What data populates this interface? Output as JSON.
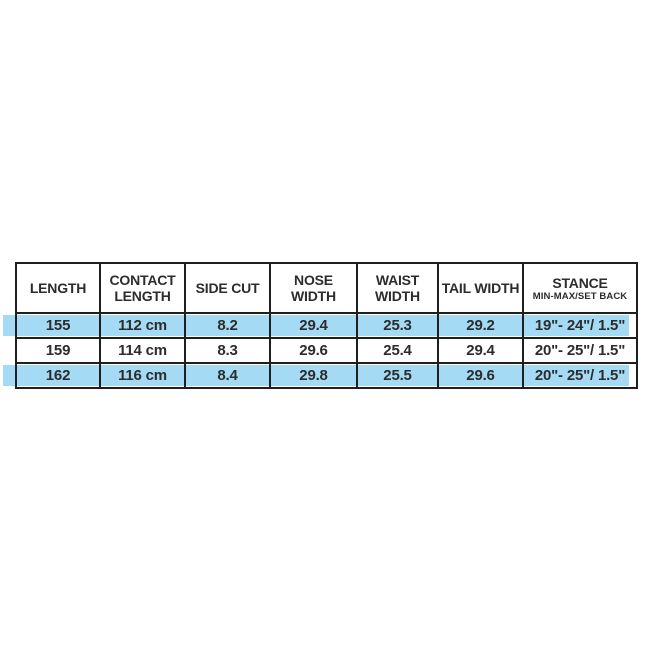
{
  "chart_data": {
    "type": "table",
    "columns": [
      {
        "label": "LENGTH",
        "sublabel": null
      },
      {
        "label": "CONTACT LENGTH",
        "sublabel": null
      },
      {
        "label": "SIDE CUT",
        "sublabel": null
      },
      {
        "label": "NOSE WIDTH",
        "sublabel": null
      },
      {
        "label": "WAIST WIDTH",
        "sublabel": null
      },
      {
        "label": "TAIL WIDTH",
        "sublabel": null
      },
      {
        "label": "STANCE",
        "sublabel": "MIN-MAX/SET BACK"
      }
    ],
    "rows": [
      {
        "highlighted": true,
        "cells": [
          "155",
          "112 cm",
          "8.2",
          "29.4",
          "25.3",
          "29.2",
          "19\"- 24\"/ 1.5\""
        ]
      },
      {
        "highlighted": false,
        "cells": [
          "159",
          "114 cm",
          "8.3",
          "29.6",
          "25.4",
          "29.4",
          "20\"- 25\"/ 1.5\""
        ]
      },
      {
        "highlighted": true,
        "cells": [
          "162",
          "116 cm",
          "8.4",
          "29.8",
          "25.5",
          "29.6",
          "20\"- 25\"/ 1.5\""
        ]
      }
    ]
  },
  "style": {
    "highlight_color": "#a4daf3",
    "border_color": "#1f1f1f",
    "text_color": "#2c2c2c",
    "background_color": "#ffffff"
  },
  "layout_hints": {
    "grid": "on",
    "legend": "none",
    "highlighted_row_indices": [
      0,
      2
    ]
  }
}
